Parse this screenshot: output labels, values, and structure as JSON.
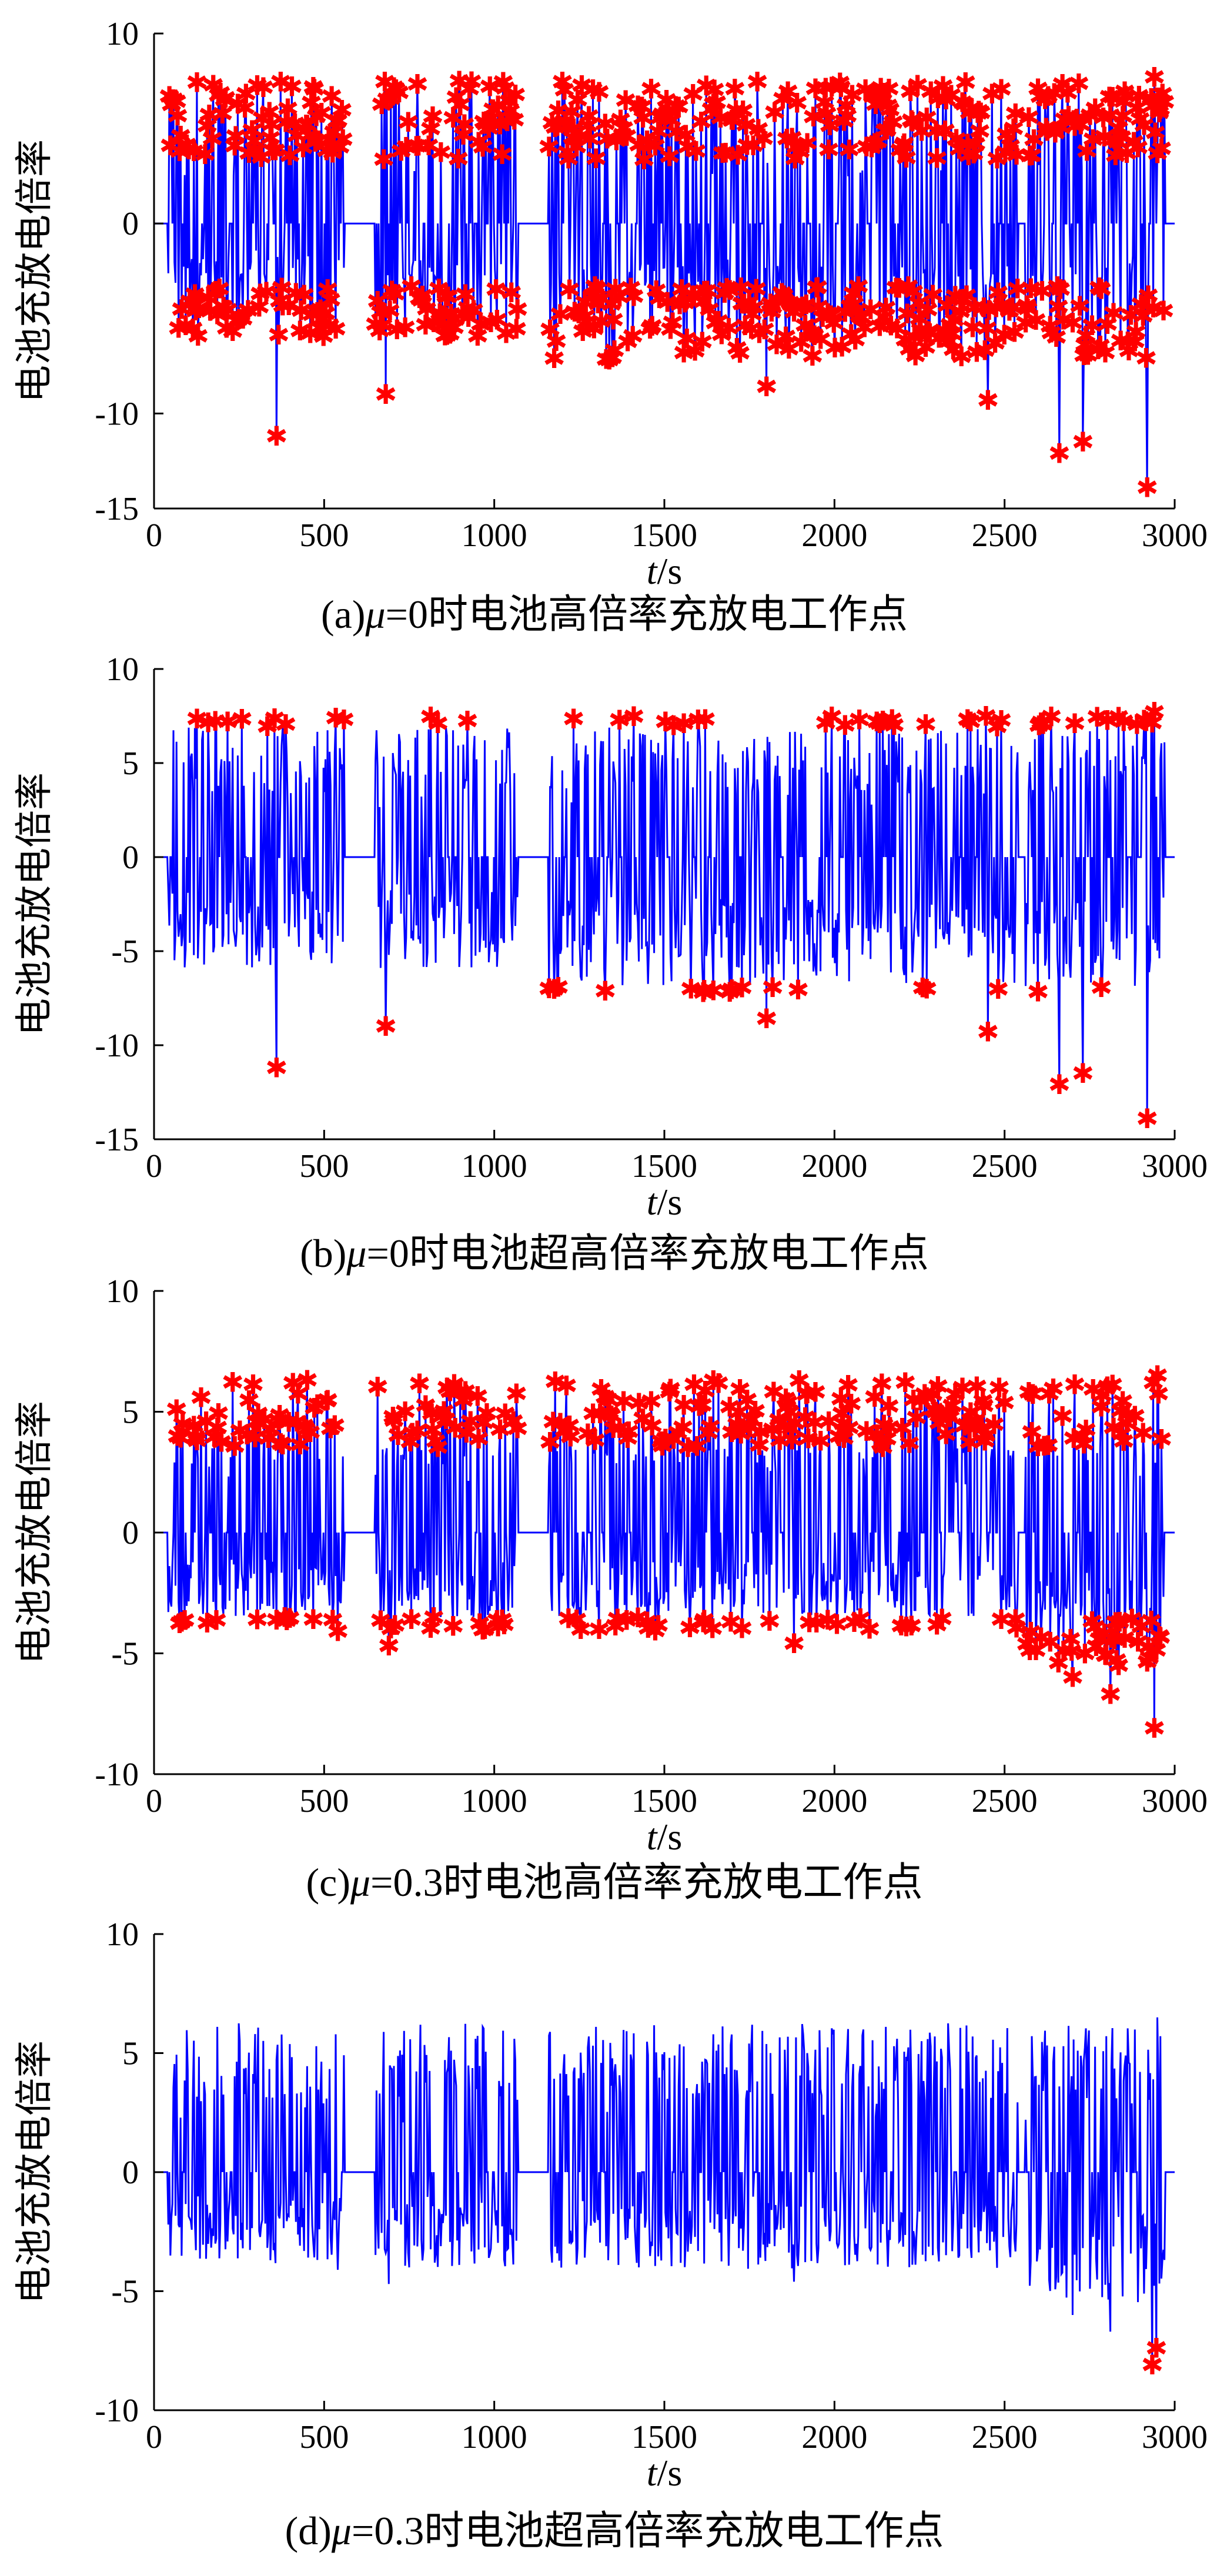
{
  "figure": {
    "colors": {
      "series": "#0000ff",
      "marker": "#ff0000",
      "axis": "#000000"
    }
  },
  "chart_data": [
    {
      "type": "line",
      "panel": "a",
      "caption": {
        "prefix": "(a)",
        "mu": "μ",
        "rest": "=0时电池高倍率充放电工作点"
      },
      "ylabel": "电池充放电倍率",
      "xlabel": {
        "var": "t",
        "unit": "/s"
      },
      "xlim": [
        0,
        3000
      ],
      "ylim": [
        -15,
        10
      ],
      "xticks": [
        0,
        500,
        1000,
        1500,
        2000,
        2500,
        3000
      ],
      "yticks": [
        -15,
        -10,
        0,
        10
      ],
      "grid": false,
      "markers": "abs_gt",
      "marker_threshold": 3.3,
      "segments": [
        [
          40,
          560,
          7.5,
          -7.0
        ],
        [
          650,
          1070,
          7.5,
          -7.0
        ],
        [
          1160,
          2540,
          7.5,
          -8.5
        ],
        [
          2560,
          2970,
          7.5,
          -8.5
        ]
      ],
      "extremes": [
        [
          360,
          -11.2
        ],
        [
          680,
          -9.0
        ],
        [
          1800,
          -8.6
        ],
        [
          2450,
          -9.3
        ],
        [
          2660,
          -12.1
        ],
        [
          2730,
          -11.5
        ],
        [
          2920,
          -13.9
        ],
        [
          2940,
          7.7
        ]
      ]
    },
    {
      "type": "line",
      "panel": "b",
      "caption": {
        "prefix": "(b)",
        "mu": "μ",
        "rest": "=0时电池超高倍率充放电工作点"
      },
      "ylabel": "电池充放电倍率",
      "xlabel": {
        "var": "t",
        "unit": "/s"
      },
      "xlim": [
        0,
        3000
      ],
      "ylim": [
        -15,
        10
      ],
      "xticks": [
        0,
        500,
        1000,
        1500,
        2000,
        2500,
        3000
      ],
      "yticks": [
        -15,
        -10,
        -5,
        0,
        5,
        10
      ],
      "grid": false,
      "markers": "abs_gt",
      "marker_threshold": 6.9,
      "segments": [
        [
          40,
          560,
          7.5,
          -7.0
        ],
        [
          650,
          1070,
          7.5,
          -7.0
        ],
        [
          1160,
          2540,
          7.5,
          -8.5
        ],
        [
          2560,
          2970,
          7.5,
          -8.5
        ]
      ],
      "extremes": [
        [
          360,
          -11.2
        ],
        [
          680,
          -9.0
        ],
        [
          1800,
          -8.6
        ],
        [
          2450,
          -9.3
        ],
        [
          2660,
          -12.1
        ],
        [
          2730,
          -11.5
        ],
        [
          2920,
          -13.9
        ],
        [
          2940,
          7.7
        ]
      ]
    },
    {
      "type": "line",
      "panel": "c",
      "caption": {
        "prefix": "(c)",
        "mu": "μ",
        "rest": "=0.3时电池高倍率充放电工作点"
      },
      "ylabel": "电池充放电倍率",
      "xlabel": {
        "var": "t",
        "unit": "/s"
      },
      "xlim": [
        0,
        3000
      ],
      "ylim": [
        -10,
        10
      ],
      "xticks": [
        0,
        500,
        1000,
        1500,
        2000,
        2500,
        3000
      ],
      "yticks": [
        -10,
        -5,
        0,
        5,
        10
      ],
      "grid": false,
      "markers": "abs_gt",
      "marker_threshold": 3.5,
      "segments": [
        [
          40,
          560,
          6.3,
          -4.5
        ],
        [
          650,
          1070,
          6.3,
          -4.8
        ],
        [
          1160,
          2540,
          6.3,
          -4.8
        ],
        [
          2560,
          2970,
          6.3,
          -6.5
        ]
      ],
      "extremes": [
        [
          540,
          -4.1
        ],
        [
          690,
          -4.7
        ],
        [
          1880,
          -4.6
        ],
        [
          2700,
          -6.0
        ],
        [
          2810,
          -6.7
        ],
        [
          2940,
          -8.1
        ],
        [
          2950,
          6.5
        ]
      ]
    },
    {
      "type": "line",
      "panel": "d",
      "caption": {
        "prefix": "(d)",
        "mu": "μ",
        "rest": "=0.3时电池超高倍率充放电工作点"
      },
      "ylabel": "电池充放电倍率",
      "xlabel": {
        "var": "t",
        "unit": "/s"
      },
      "xlim": [
        0,
        3000
      ],
      "ylim": [
        -10,
        10
      ],
      "xticks": [
        0,
        500,
        1000,
        1500,
        2000,
        2500,
        3000
      ],
      "yticks": [
        -10,
        -5,
        0,
        5,
        10
      ],
      "grid": false,
      "markers": "lt",
      "marker_threshold": -7.0,
      "segments": [
        [
          40,
          560,
          6.3,
          -4.5
        ],
        [
          650,
          1070,
          6.3,
          -4.8
        ],
        [
          1160,
          2540,
          6.3,
          -4.8
        ],
        [
          2560,
          2970,
          6.3,
          -6.5
        ]
      ],
      "extremes": [
        [
          540,
          -4.1
        ],
        [
          690,
          -4.7
        ],
        [
          1880,
          -4.6
        ],
        [
          2700,
          -6.0
        ],
        [
          2810,
          -6.7
        ],
        [
          2935,
          -8.1
        ],
        [
          2945,
          -7.4
        ],
        [
          2950,
          6.5
        ]
      ]
    }
  ]
}
